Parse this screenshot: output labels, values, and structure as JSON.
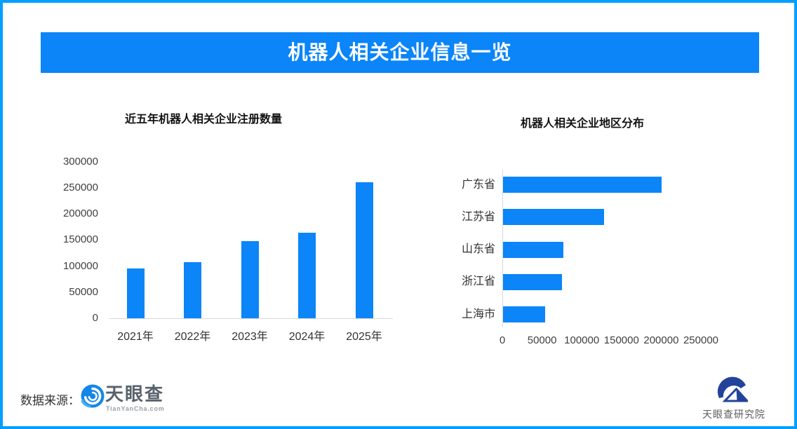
{
  "banner": {
    "title": "机器人相关企业信息一览",
    "bg_color": "#0b85f8",
    "text_color": "#ffffff"
  },
  "border_color": "#00a0fe",
  "chart_data": [
    {
      "type": "bar",
      "title": "近五年机器人相关企业注册数量",
      "categories": [
        "2021年",
        "2022年",
        "2023年",
        "2024年",
        "2025年"
      ],
      "values": [
        95000,
        107000,
        148000,
        164000,
        261000
      ],
      "xlabel": "",
      "ylabel": "",
      "ylim": [
        0,
        300000
      ],
      "yticks": [
        0,
        50000,
        100000,
        150000,
        200000,
        250000,
        300000
      ],
      "grid": false,
      "legend": "none",
      "bar_color": "#0b85f8"
    },
    {
      "type": "bar-horizontal",
      "title": "机器人相关企业地区分布",
      "categories": [
        "广东省",
        "江苏省",
        "山东省",
        "浙江省",
        "上海市"
      ],
      "values": [
        200000,
        127000,
        76000,
        74000,
        53000
      ],
      "xlabel": "",
      "ylabel": "",
      "xlim": [
        0,
        300000
      ],
      "xticks": [
        0,
        50000,
        100000,
        150000,
        200000,
        250000
      ],
      "grid": false,
      "legend": "none",
      "bar_color": "#0b85f8"
    }
  ],
  "footer": {
    "source_label": "数据来源：",
    "tianyancha": {
      "name": "天眼查",
      "domain": "TianYanCha.com"
    },
    "institute": "天眼查研究院"
  }
}
